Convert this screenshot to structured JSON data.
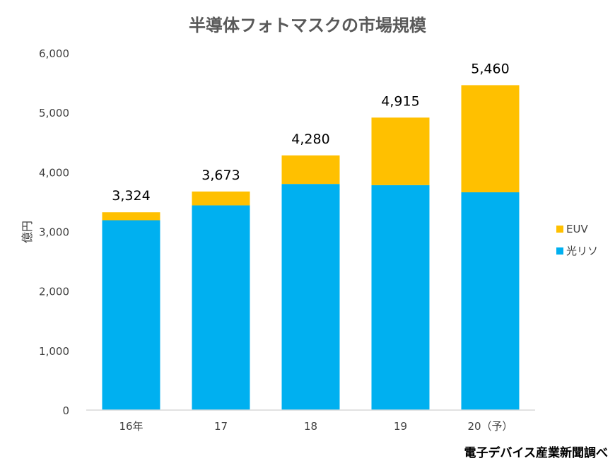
{
  "chart_data": {
    "type": "bar",
    "stacked": true,
    "title": "半導体フォトマスクの市場規模",
    "ylabel": "億円",
    "xlabel": "",
    "ylim": [
      0,
      6000
    ],
    "yticks": [
      "0",
      "1,000",
      "2,000",
      "3,000",
      "4,000",
      "5,000",
      "6,000"
    ],
    "categories": [
      "16年",
      "17",
      "18",
      "19",
      "20（予）"
    ],
    "totals": [
      3324,
      3673,
      4280,
      4915,
      5460
    ],
    "total_labels": [
      "3,324",
      "3,673",
      "4,280",
      "4,915",
      "5,460"
    ],
    "series": [
      {
        "name": "光リソ",
        "color": "#00B0F0",
        "values": [
          3190,
          3440,
          3800,
          3780,
          3660
        ]
      },
      {
        "name": "EUV",
        "color": "#FFC000",
        "values": [
          134,
          233,
          480,
          1135,
          1800
        ]
      }
    ],
    "legend_order": [
      "EUV",
      "光リソ"
    ],
    "legend_position": "right",
    "grid": false,
    "axis_color": "#D9D9D9",
    "text_color": "#404040"
  },
  "source_note": "電子デバイス産業新聞調べ"
}
